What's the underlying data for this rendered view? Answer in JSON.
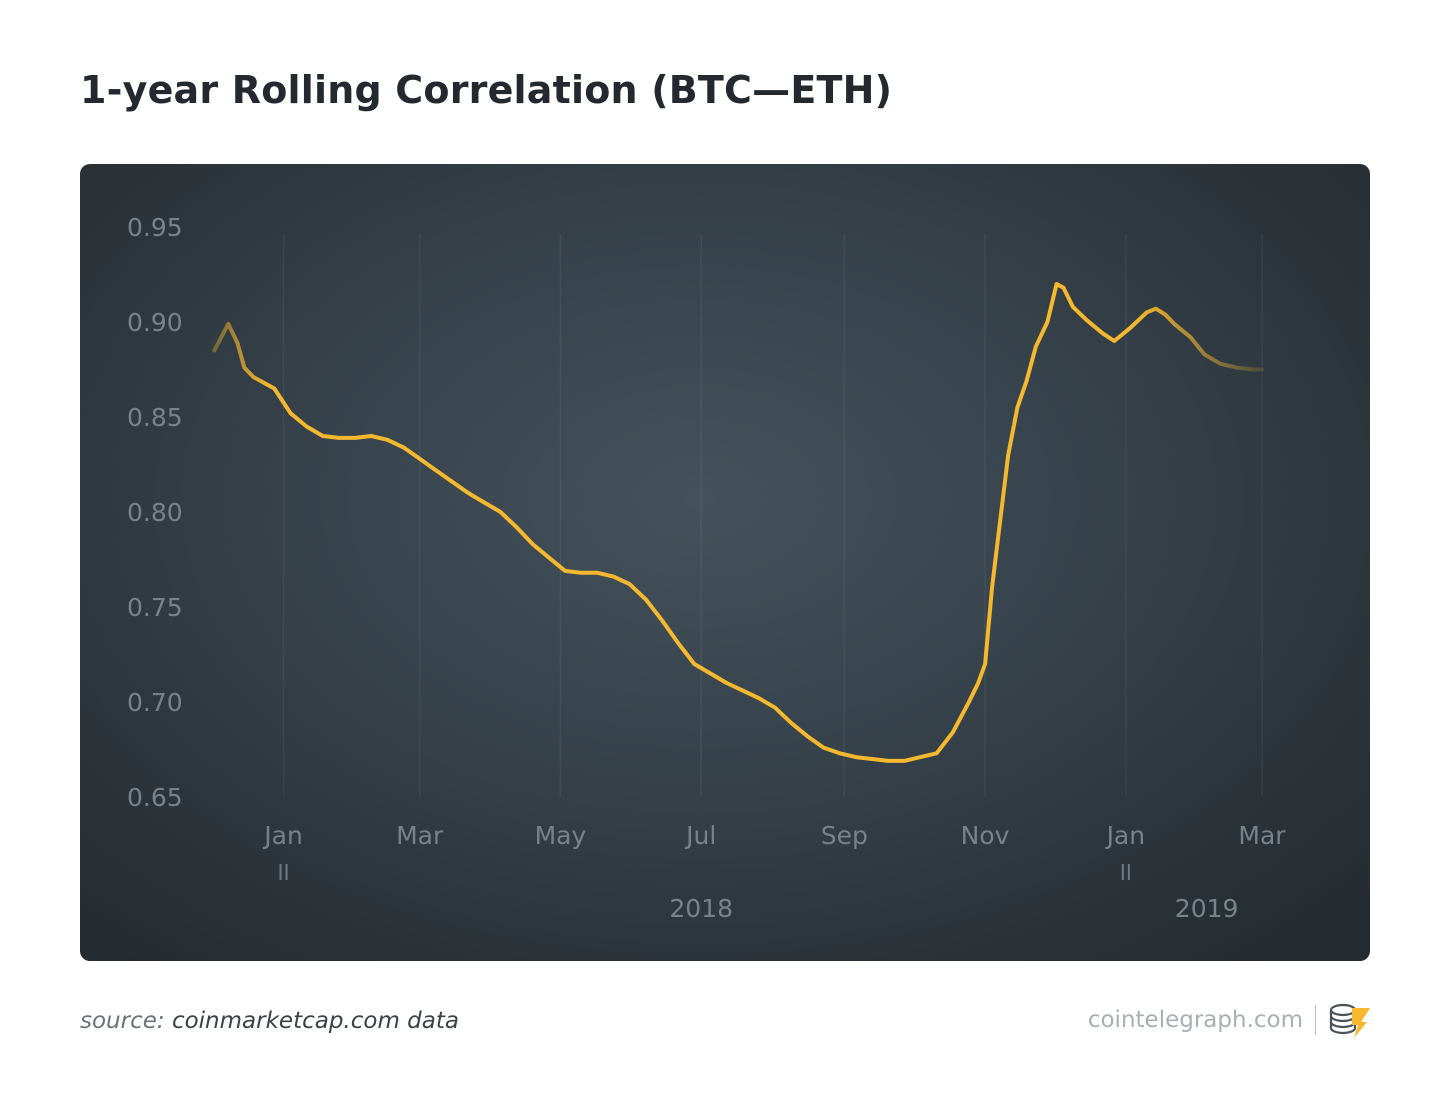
{
  "page": {
    "title": "1-year Rolling Correlation (BTC—ETH)",
    "source_prefix": "source: ",
    "source_value": "coinmarketcap.com data",
    "brand": "cointelegraph.com",
    "logo_icon": "cointelegraph-coins-lightning-icon"
  },
  "colors": {
    "line": "#f5b82e",
    "panel": "#39454d",
    "tick_text": "#77838b",
    "axis_label_text": "#939ea5"
  },
  "chart_data": {
    "type": "line",
    "title": "1-year Rolling Correlation (BTC—ETH)",
    "xlabel": "",
    "ylabel": "",
    "ylim": [
      0.65,
      0.95
    ],
    "yticks": [
      "0.95",
      "0.90",
      "0.85",
      "0.80",
      "0.75",
      "0.70",
      "0.65"
    ],
    "xlim": [
      "2017-12-01",
      "2019-03-01"
    ],
    "xticks": [
      {
        "label": "Jan",
        "date": "2018-01-01"
      },
      {
        "label": "Mar",
        "date": "2018-03-01"
      },
      {
        "label": "May",
        "date": "2018-05-01"
      },
      {
        "label": "Jul",
        "date": "2018-07-01"
      },
      {
        "label": "Sep",
        "date": "2018-09-01"
      },
      {
        "label": "Nov",
        "date": "2018-11-01"
      },
      {
        "label": "Jan",
        "date": "2019-01-01"
      },
      {
        "label": "Mar",
        "date": "2019-03-01"
      }
    ],
    "year_labels": [
      {
        "label": "2018",
        "date": "2018-07-01"
      },
      {
        "label": "2019",
        "date": "2019-02-05"
      }
    ],
    "year_breaks": [
      "2018-01-01",
      "2019-01-01"
    ],
    "grid": true,
    "legend": "none",
    "series": [
      {
        "points": [
          [
            "2017-12-02",
            0.885
          ],
          [
            "2017-12-08",
            0.899
          ],
          [
            "2017-12-12",
            0.889
          ],
          [
            "2017-12-15",
            0.876
          ],
          [
            "2017-12-19",
            0.871
          ],
          [
            "2017-12-28",
            0.865
          ],
          [
            "2018-01-04",
            0.852
          ],
          [
            "2018-01-11",
            0.845
          ],
          [
            "2018-01-18",
            0.84
          ],
          [
            "2018-01-25",
            0.839
          ],
          [
            "2018-02-01",
            0.839
          ],
          [
            "2018-02-08",
            0.84
          ],
          [
            "2018-02-15",
            0.838
          ],
          [
            "2018-02-22",
            0.834
          ],
          [
            "2018-03-01",
            0.828
          ],
          [
            "2018-03-08",
            0.822
          ],
          [
            "2018-03-15",
            0.816
          ],
          [
            "2018-03-22",
            0.81
          ],
          [
            "2018-03-29",
            0.805
          ],
          [
            "2018-04-05",
            0.8
          ],
          [
            "2018-04-12",
            0.792
          ],
          [
            "2018-04-19",
            0.783
          ],
          [
            "2018-04-26",
            0.776
          ],
          [
            "2018-05-03",
            0.769
          ],
          [
            "2018-05-10",
            0.768
          ],
          [
            "2018-05-17",
            0.768
          ],
          [
            "2018-05-24",
            0.766
          ],
          [
            "2018-05-31",
            0.762
          ],
          [
            "2018-06-07",
            0.754
          ],
          [
            "2018-06-14",
            0.743
          ],
          [
            "2018-06-21",
            0.731
          ],
          [
            "2018-06-28",
            0.72
          ],
          [
            "2018-07-05",
            0.715
          ],
          [
            "2018-07-12",
            0.71
          ],
          [
            "2018-07-19",
            0.706
          ],
          [
            "2018-07-26",
            0.702
          ],
          [
            "2018-08-02",
            0.697
          ],
          [
            "2018-08-09",
            0.689
          ],
          [
            "2018-08-16",
            0.682
          ],
          [
            "2018-08-23",
            0.676
          ],
          [
            "2018-08-30",
            0.673
          ],
          [
            "2018-09-06",
            0.671
          ],
          [
            "2018-09-13",
            0.67
          ],
          [
            "2018-09-20",
            0.669
          ],
          [
            "2018-09-27",
            0.669
          ],
          [
            "2018-10-04",
            0.671
          ],
          [
            "2018-10-11",
            0.673
          ],
          [
            "2018-10-18",
            0.684
          ],
          [
            "2018-10-25",
            0.7
          ],
          [
            "2018-10-29",
            0.71
          ],
          [
            "2018-11-01",
            0.72
          ],
          [
            "2018-11-04",
            0.76
          ],
          [
            "2018-11-07",
            0.79
          ],
          [
            "2018-11-11",
            0.83
          ],
          [
            "2018-11-15",
            0.855
          ],
          [
            "2018-11-19",
            0.869
          ],
          [
            "2018-11-23",
            0.887
          ],
          [
            "2018-11-28",
            0.9
          ],
          [
            "2018-12-02",
            0.92
          ],
          [
            "2018-12-05",
            0.918
          ],
          [
            "2018-12-09",
            0.908
          ],
          [
            "2018-12-15",
            0.901
          ],
          [
            "2018-12-22",
            0.894
          ],
          [
            "2018-12-27",
            0.89
          ],
          [
            "2019-01-03",
            0.897
          ],
          [
            "2019-01-10",
            0.905
          ],
          [
            "2019-01-14",
            0.907
          ],
          [
            "2019-01-18",
            0.904
          ],
          [
            "2019-01-22",
            0.899
          ],
          [
            "2019-01-29",
            0.892
          ],
          [
            "2019-02-04",
            0.883
          ],
          [
            "2019-02-11",
            0.878
          ],
          [
            "2019-02-18",
            0.876
          ],
          [
            "2019-02-25",
            0.875
          ],
          [
            "2019-03-01",
            0.875
          ]
        ]
      }
    ]
  }
}
